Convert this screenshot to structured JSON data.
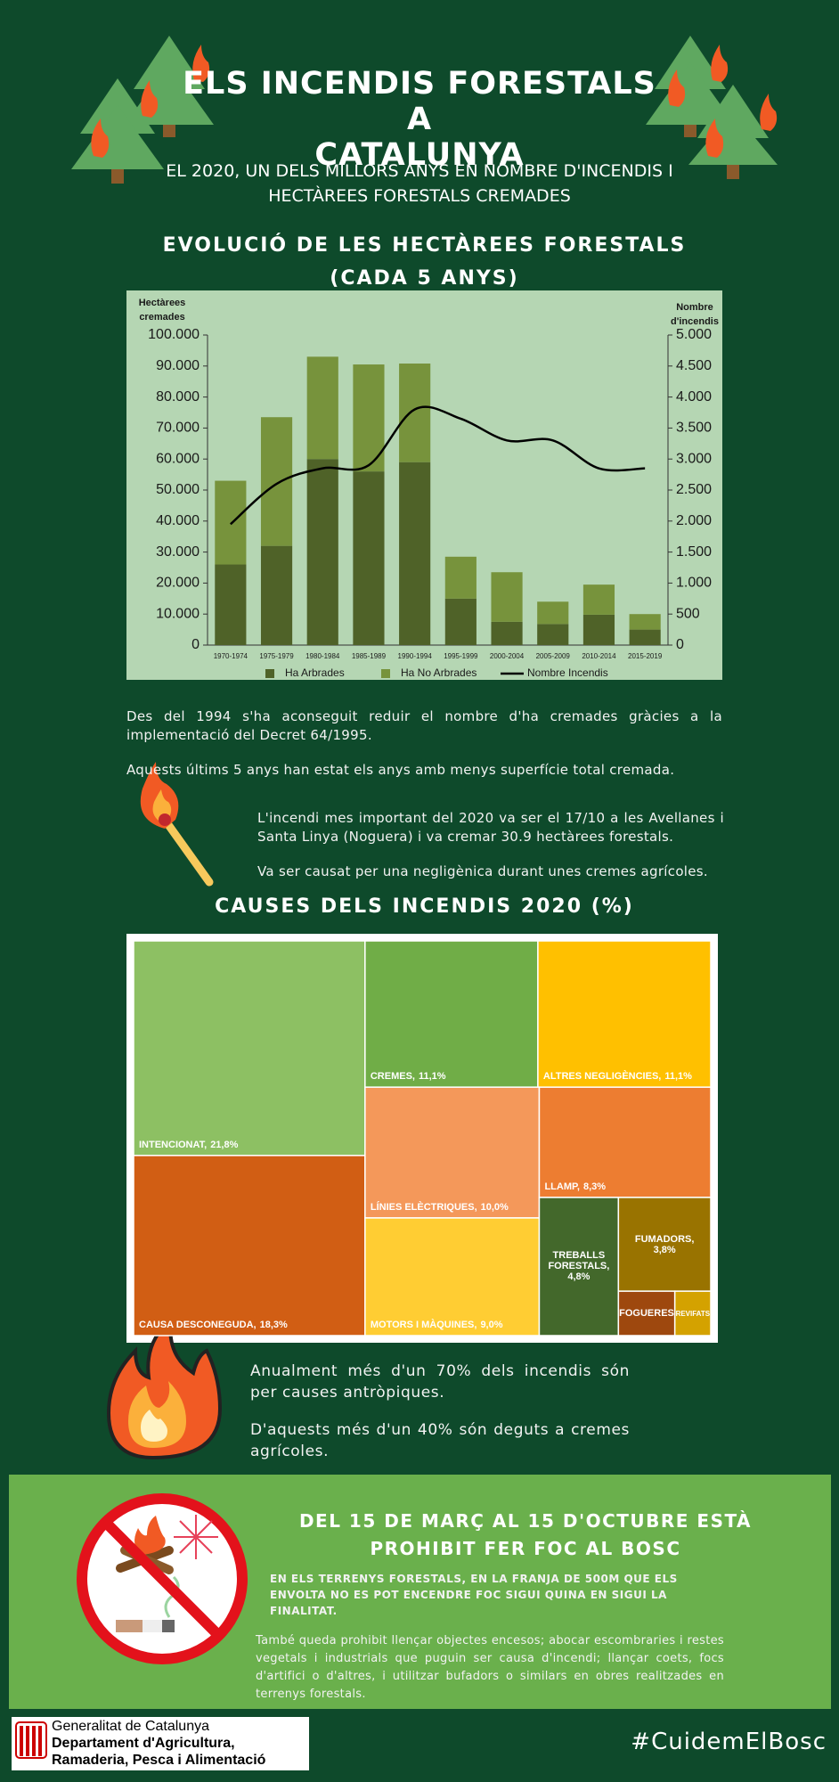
{
  "header": {
    "title": [
      "ELS INCENDIS FORESTALS A",
      "CATALUNYA"
    ],
    "subtitle": [
      "EL 2020, UN DELS MILLORS ANYS EN NOMBRE D'INCENDIS I",
      "HECTÀREES FORESTALS CREMADES"
    ]
  },
  "chart_data": [
    {
      "type": "bar",
      "title": [
        "EVOLUCIÓ DE LES HECTÀREES FORESTALS",
        "(CADA 5 ANYS)"
      ],
      "y_label": [
        "Hectàrees",
        "cremades"
      ],
      "y2_label": [
        "Nombre",
        "d'incendis"
      ],
      "stacked": true,
      "categories": [
        "1970-1974",
        "1975-1979",
        "1980-1984",
        "1985-1989",
        "1990-1994",
        "1995-1999",
        "2000-2004",
        "2005-2009",
        "2010-2014",
        "2015-2019"
      ],
      "series": [
        {
          "name": "Ha Arbrades",
          "type": "bar",
          "color": "#4f6228",
          "values": [
            26000,
            32000,
            60000,
            56000,
            59000,
            15000,
            7500,
            6800,
            9800,
            5000
          ]
        },
        {
          "name": "Ha No Arbrades",
          "type": "bar",
          "color": "#77933c",
          "values": [
            27000,
            41500,
            33000,
            34500,
            31800,
            13500,
            16000,
            7200,
            9700,
            5000
          ]
        },
        {
          "name": "Nombre Incendis",
          "type": "line",
          "axis": "y2",
          "color": "#000000",
          "values": [
            1950,
            2600,
            2850,
            2900,
            3800,
            3650,
            3300,
            3300,
            2850,
            2850
          ]
        }
      ],
      "ylim": [
        0,
        100000
      ],
      "yticks": [
        0,
        {
          "value": 10000,
          "label": "10.000"
        },
        {
          "value": 20000,
          "label": "20.000"
        },
        {
          "value": 30000,
          "label": "30.000"
        },
        {
          "value": 40000,
          "label": "40.000"
        },
        {
          "value": 50000,
          "label": "50.000"
        },
        {
          "value": 60000,
          "label": "60.000"
        },
        {
          "value": 70000,
          "label": "70.000"
        },
        {
          "value": 80000,
          "label": "80.000"
        },
        {
          "value": 90000,
          "label": "90.000"
        },
        {
          "value": 100000,
          "label": "100.000"
        }
      ],
      "y2lim": [
        0,
        5000
      ],
      "y2ticks": [
        0,
        500,
        {
          "value": 1000,
          "label": "1.000"
        },
        {
          "value": 1500,
          "label": "1.500"
        },
        {
          "value": 2000,
          "label": "2.000"
        },
        {
          "value": 2500,
          "label": "2.500"
        },
        {
          "value": 3000,
          "label": "3.000"
        },
        {
          "value": 3500,
          "label": "3.500"
        },
        {
          "value": 4000,
          "label": "4.000"
        },
        {
          "value": 4500,
          "label": "4.500"
        },
        {
          "value": 5000,
          "label": "5.000"
        }
      ],
      "legend": "bottom",
      "grid": false
    },
    {
      "type": "treemap",
      "title": "CAUSES DELS INCENDIS 2020 (%)",
      "categories": [
        "INTENCIONAT,",
        "CAUSA DESCONEGUDA,",
        "CREMES,",
        "ALTRES NEGLIGÈNCIES,",
        "LÍNIES ELÈCTRIQUES,",
        "LLAMP,",
        "MOTORS I MÀQUINES,",
        "TREBALLS FORESTALS,",
        "FUMADORS,",
        "FOGUERES",
        "REVIFATS"
      ],
      "values": [
        21.8,
        18.3,
        11.1,
        11.1,
        10.0,
        8.3,
        9.0,
        4.8,
        3.8,
        1.1,
        0.7
      ],
      "value_labels": [
        "21,8%",
        "18,3%",
        "11,1%",
        "11,1%",
        "10,0%",
        "8,3%",
        "9,0%",
        "4,8%",
        "3,8%",
        null,
        null
      ],
      "colors": [
        "#8dc063",
        "#d15e14",
        "#70ad47",
        "#ffc000",
        "#f4985a",
        "#ed7d31",
        "#ffcd33",
        "#43682b",
        "#997300",
        "#9e480e",
        "#d4a200"
      ]
    }
  ],
  "notes1": [
    "Des del 1994 s'ha aconseguit reduir el nombre d'ha cremades gràcies a la implementació del Decret 64/1995.",
    "Aquests últims 5 anys han estat els anys amb menys superfície total cremada."
  ],
  "notes2": [
    "L'incendi mes important del 2020 va ser el 17/10 a les Avellanes i Santa Linya (Noguera) i va cremar 30.9 hectàrees forestals.",
    "Va ser causat per una negligènica durant unes cremes agrícoles."
  ],
  "notes3": [
    "Anualment més d'un 70% dels incendis són per causes antròpiques.",
    "D'aquests més d'un 40% són deguts a cremes agrícoles."
  ],
  "banner": {
    "title": [
      "DEL 15 DE MARÇ AL 15 D'OCTUBRE ESTÀ",
      "PROHIBIT FER FOC AL BOSC"
    ],
    "subtitle": "EN ELS TERRENYS FORESTALS, EN LA FRANJA DE 500M QUE ELS ENVOLTA NO ES POT ENCENDRE FOC SIGUI QUINA EN SIGUI LA FINALITAT.",
    "text": "També queda prohibit llençar objectes encesos; abocar escombraries i restes vegetals i industrials que puguin ser causa d'incendi; llançar coets, focs d'artifici o d'altres, i utilitzar bufadors o similars en obres realitzades en terrenys forestals."
  },
  "footer": {
    "org": "Generalitat de Catalunya",
    "department": [
      "Departament d'Agricultura,",
      "Ramaderia, Pesca i Alimentació"
    ],
    "hashtag": "#CuidemElBosc"
  }
}
